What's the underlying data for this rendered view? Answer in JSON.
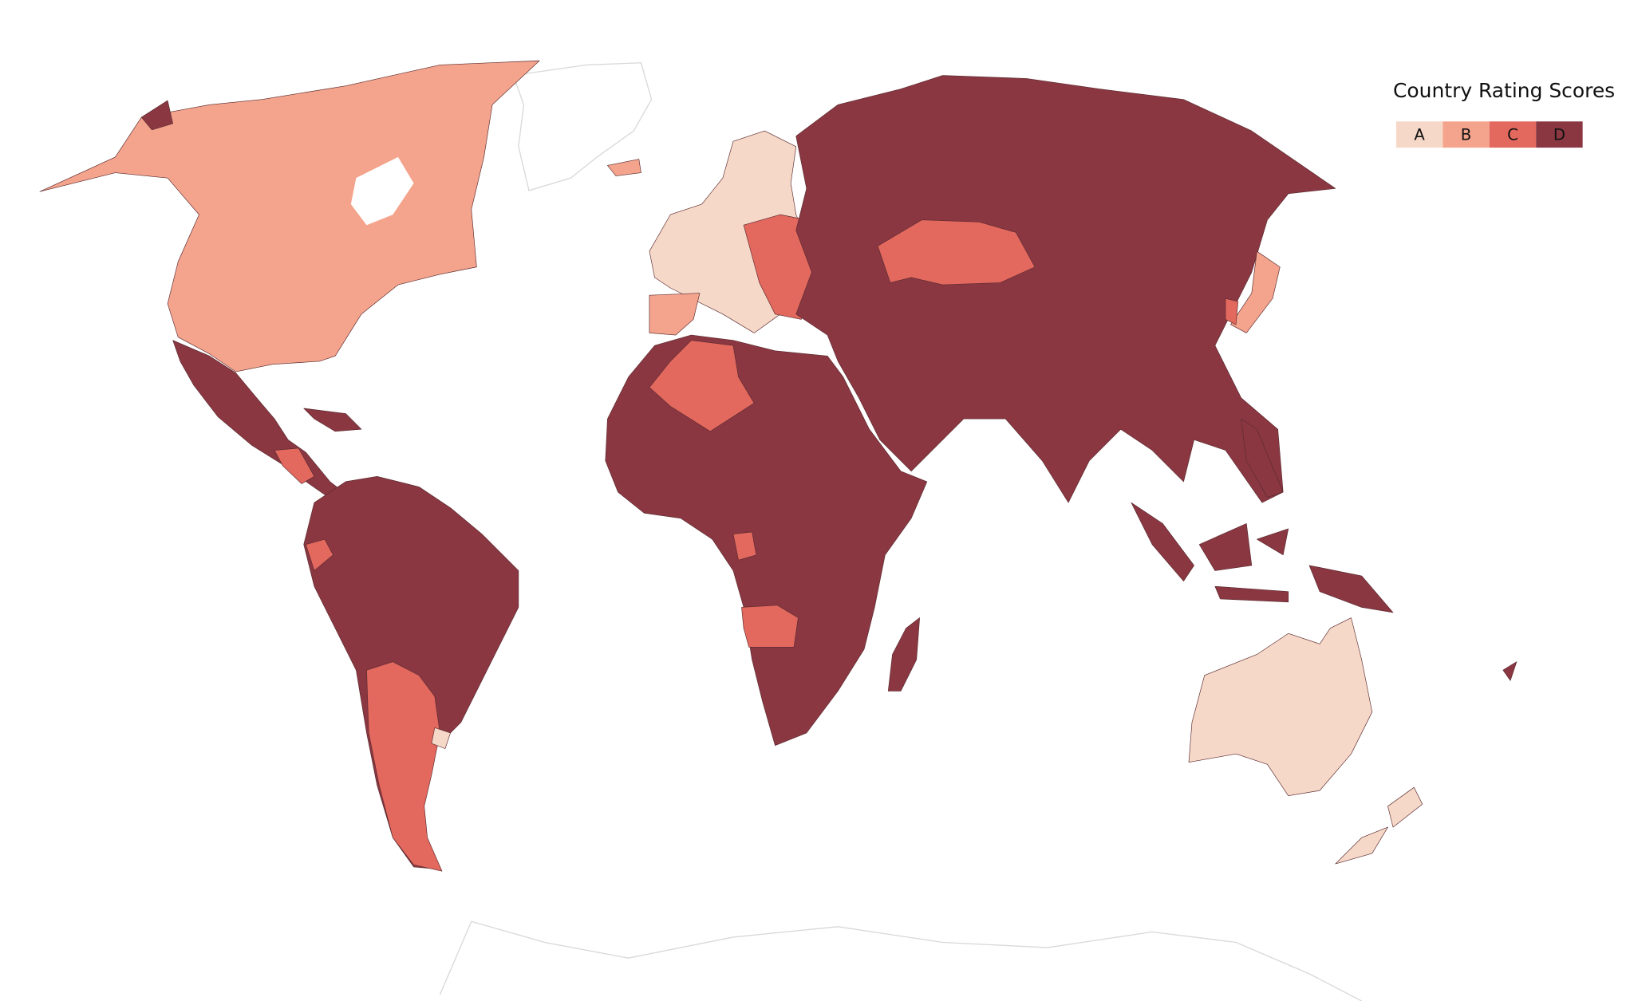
{
  "legend": {
    "title": "Country Rating Scores",
    "items": [
      {
        "label": "A",
        "color": "#f6d8c8"
      },
      {
        "label": "B",
        "color": "#f4a48c"
      },
      {
        "label": "C",
        "color": "#e3685e"
      },
      {
        "label": "D",
        "color": "#8a3742"
      }
    ]
  }
}
